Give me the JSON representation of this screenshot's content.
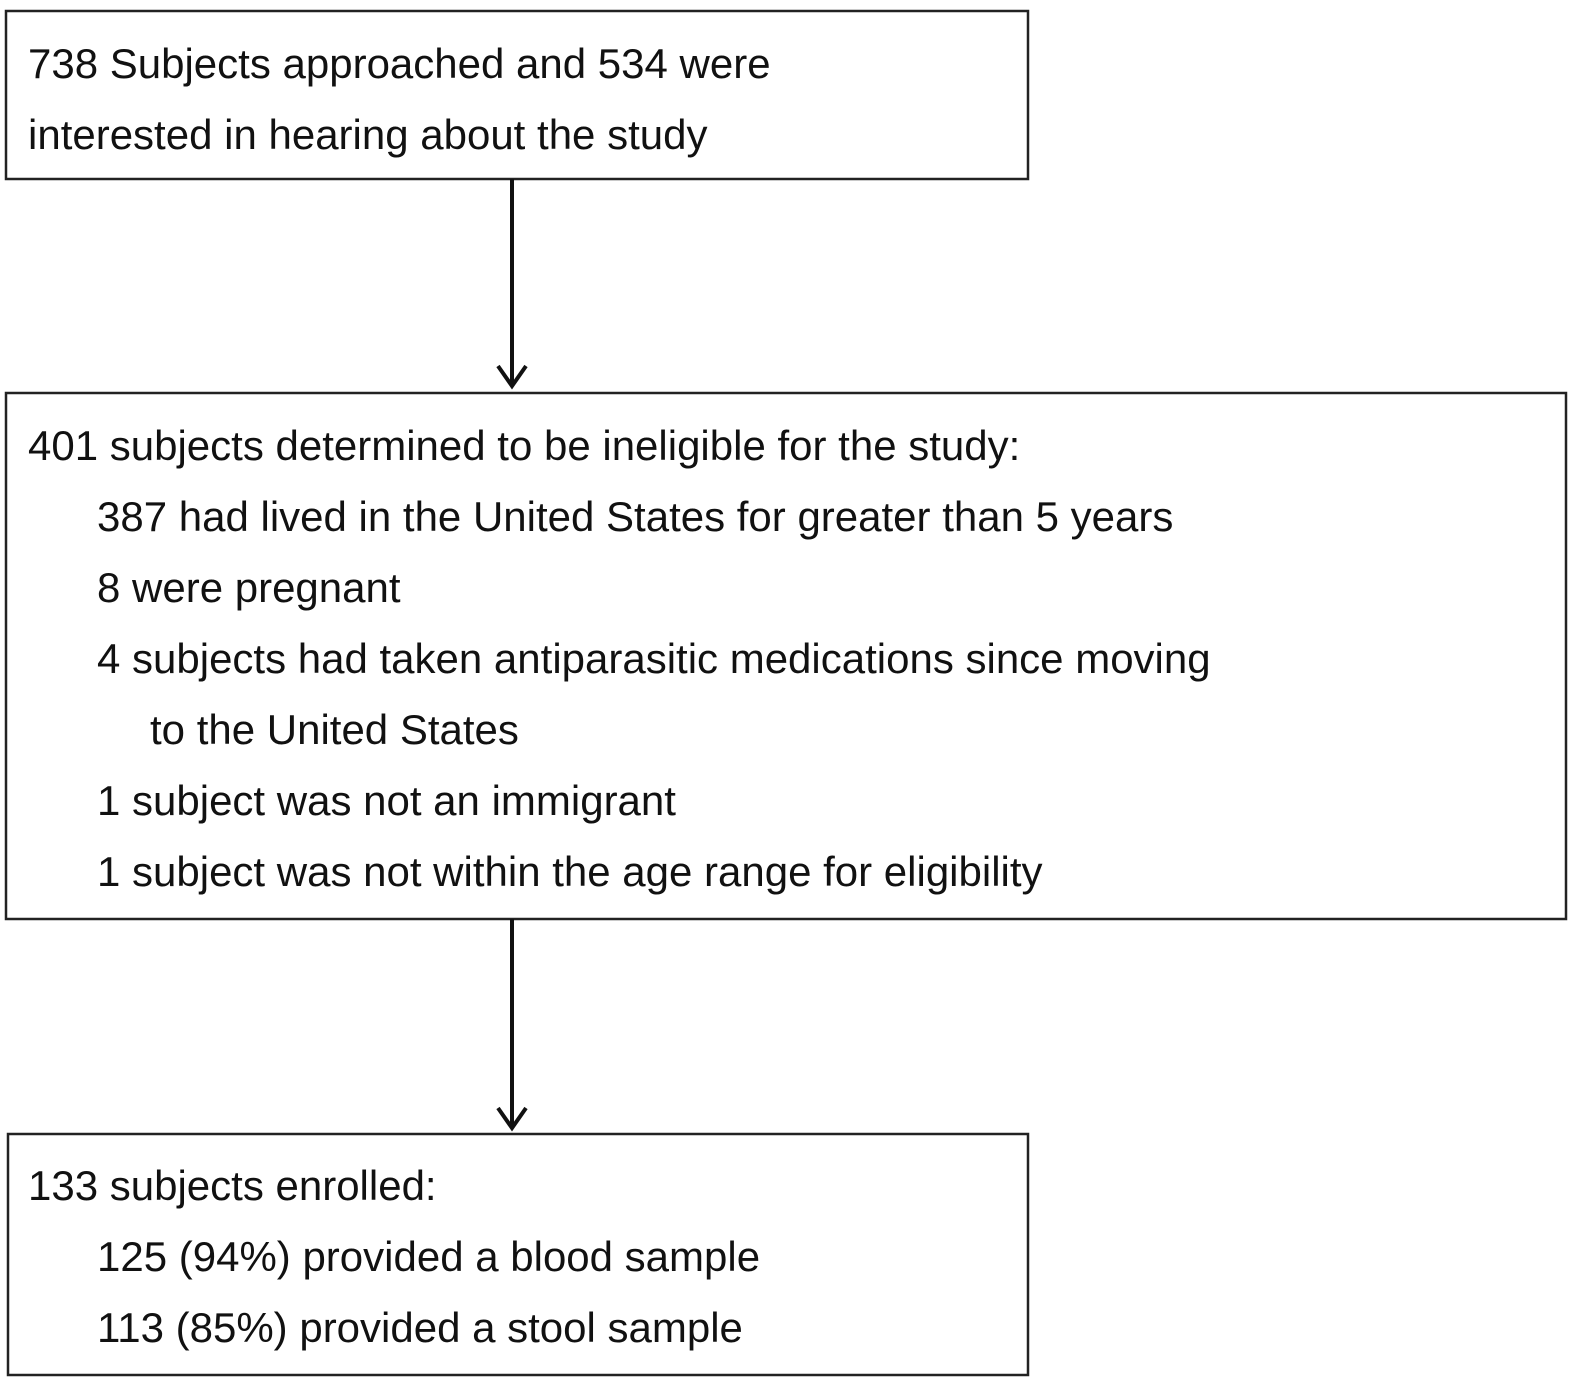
{
  "nodes": [
    {
      "lines": [
        "738 Subjects approached and 534 were",
        "interested in hearing about the study"
      ]
    },
    {
      "heading": "401 subjects determined to be ineligible for the study:",
      "items": [
        [
          "387 had lived in the United States for greater than 5 years"
        ],
        [
          "8 were pregnant"
        ],
        [
          "4 subjects had taken antiparasitic medications since moving",
          "to the United States"
        ],
        [
          "1 subject was not an immigrant"
        ],
        [
          "1 subject was not within the age range for eligibility"
        ]
      ]
    },
    {
      "heading": "133 subjects enrolled:",
      "items": [
        [
          "125 (94%) provided a blood sample"
        ],
        [
          "113 (85%) provided a stool sample"
        ]
      ]
    }
  ]
}
